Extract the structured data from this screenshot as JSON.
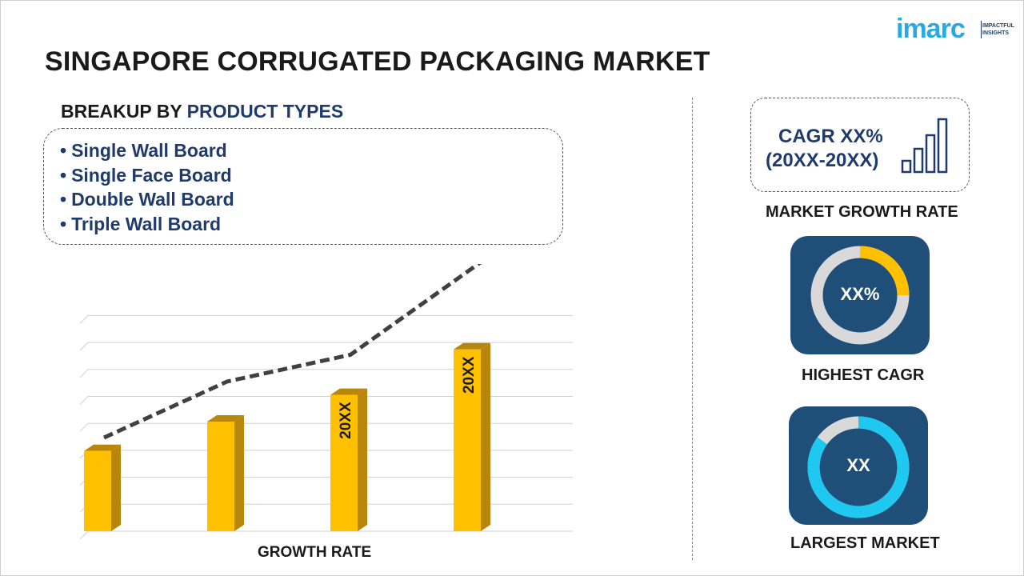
{
  "brand": {
    "name": "imarc",
    "tagline_line1": "IMPACTFUL",
    "tagline_line2": "INSIGHTS"
  },
  "page": {
    "title": "SINGAPORE CORRUGATED PACKAGING MARKET"
  },
  "breakup": {
    "heading_prefix": "BREAKUP BY",
    "heading_accent": "PRODUCT TYPES",
    "items": [
      "Single Wall Board",
      "Single Face Board",
      "Double Wall Board",
      "Triple Wall Board"
    ]
  },
  "chart_data": {
    "type": "bar",
    "categories": [
      "",
      "",
      "",
      ""
    ],
    "values": [
      30,
      41,
      51,
      68
    ],
    "bar_labels": [
      "",
      "",
      "20XX",
      "20XX"
    ],
    "trend_values": [
      35,
      56,
      66,
      97
    ],
    "trend_label": "CAGR XX%",
    "xlabel": "GROWTH RATE",
    "ylabel": "",
    "ylim": [
      0,
      85
    ],
    "grid": true,
    "colors": {
      "bar": "#ffc000",
      "bar_side": "#b8860b",
      "trend": "#404040",
      "grid": "#d0d0d0"
    }
  },
  "cagr_box": {
    "line1": "CAGR XX%",
    "line2": "(20XX-20XX)",
    "caption": "MARKET GROWTH RATE",
    "icon": "growth-bars-icon"
  },
  "highest_cagr": {
    "value": "XX%",
    "caption": "HIGHEST CAGR",
    "ring_fraction": 0.25,
    "colors": {
      "fill": "#ffc000",
      "track": "#d9d9d9",
      "tile": "#1f4e79"
    }
  },
  "largest_market": {
    "value": "XX",
    "caption": "LARGEST MARKET",
    "ring_fraction": 0.85,
    "colors": {
      "fill": "#1ec8f0",
      "track": "#d9d9d9",
      "tile": "#1f4e79"
    }
  }
}
